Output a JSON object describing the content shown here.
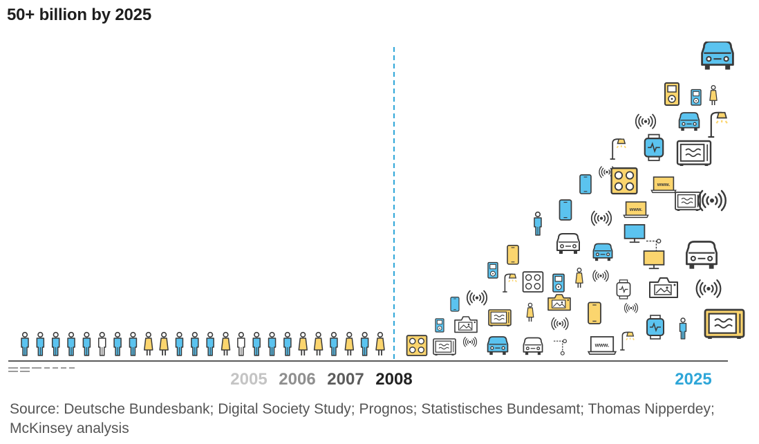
{
  "title": "50+ billion by 2025",
  "source": "Source: Deutsche Bundesbank; Digital Society Study; Prognos; Statistisches Bundesamt; Thomas Nipperdey; McKinsey analysis",
  "colors": {
    "blue": "#5bc3ef",
    "yellow": "#fbd56e",
    "outline": "#3a3a3a",
    "divider": "#2ea6d8",
    "gray": "#c8c8c8"
  },
  "chart_data": {
    "type": "pictogram",
    "title": "50+ billion by 2025",
    "categories": [
      "2005",
      "2006",
      "2007",
      "2008",
      "2025"
    ],
    "year_label_colors": [
      "#c4c4c4",
      "#8f8f8f",
      "#5c5c5c",
      "#222222",
      "#2ea6d8"
    ],
    "people_row": [
      "blue",
      "blue",
      "blue",
      "blue",
      "blue",
      "white",
      "blue",
      "blue",
      "yellow",
      "yellow",
      "blue",
      "blue",
      "blue",
      "yellow",
      "white",
      "blue",
      "blue",
      "blue",
      "yellow",
      "yellow",
      "blue",
      "yellow",
      "blue",
      "yellow"
    ],
    "device_icons": [
      {
        "icon": "car-icon",
        "fill": "blue"
      },
      {
        "icon": "ipod-icon",
        "fill": "yellow"
      },
      {
        "icon": "ipod-icon",
        "fill": "blue"
      },
      {
        "icon": "person-icon",
        "fill": "yellow"
      },
      {
        "icon": "wifi-icon",
        "fill": "none"
      },
      {
        "icon": "car-icon",
        "fill": "blue"
      },
      {
        "icon": "streetlamp-icon",
        "fill": "yellow"
      },
      {
        "icon": "streetlamp-icon",
        "fill": "yellow"
      },
      {
        "icon": "smartwatch-icon",
        "fill": "blue"
      },
      {
        "icon": "microwave-icon",
        "fill": "white"
      },
      {
        "icon": "smartphone-icon",
        "fill": "blue"
      },
      {
        "icon": "wifi-icon",
        "fill": "none"
      },
      {
        "icon": "cooktop-icon",
        "fill": "yellow"
      },
      {
        "icon": "laptop-icon",
        "fill": "yellow"
      },
      {
        "icon": "microwave-icon",
        "fill": "white"
      },
      {
        "icon": "wifi-icon",
        "fill": "none"
      },
      {
        "icon": "smartphone-icon",
        "fill": "blue"
      },
      {
        "icon": "wifi-icon",
        "fill": "none"
      },
      {
        "icon": "laptop-icon",
        "fill": "yellow"
      },
      {
        "icon": "person-icon",
        "fill": "blue"
      },
      {
        "icon": "car-icon",
        "fill": "white"
      },
      {
        "icon": "smartphone-icon",
        "fill": "yellow"
      },
      {
        "icon": "car-icon",
        "fill": "blue"
      },
      {
        "icon": "monitor-icon",
        "fill": "blue"
      },
      {
        "icon": "connected-icon",
        "fill": "none"
      },
      {
        "icon": "monitor-icon",
        "fill": "yellow"
      },
      {
        "icon": "car-icon",
        "fill": "white"
      },
      {
        "icon": "ipod-icon",
        "fill": "blue"
      },
      {
        "icon": "streetlamp-icon",
        "fill": "yellow"
      },
      {
        "icon": "cooktop-icon",
        "fill": "white"
      },
      {
        "icon": "ipod-icon",
        "fill": "blue"
      },
      {
        "icon": "person-icon",
        "fill": "yellow"
      },
      {
        "icon": "wifi-icon",
        "fill": "none"
      },
      {
        "icon": "smartwatch-icon",
        "fill": "white"
      },
      {
        "icon": "camera-icon",
        "fill": "white"
      },
      {
        "icon": "wifi-icon",
        "fill": "none"
      },
      {
        "icon": "wifi-icon",
        "fill": "none"
      },
      {
        "icon": "smartphone-icon",
        "fill": "blue"
      },
      {
        "icon": "camera-icon",
        "fill": "yellow"
      },
      {
        "icon": "smartphone-icon",
        "fill": "yellow"
      },
      {
        "icon": "wifi-icon",
        "fill": "none"
      },
      {
        "icon": "microwave-icon",
        "fill": "yellow"
      },
      {
        "icon": "person-icon",
        "fill": "yellow"
      },
      {
        "icon": "wifi-icon",
        "fill": "none"
      },
      {
        "icon": "smartwatch-icon",
        "fill": "blue"
      },
      {
        "icon": "person-icon",
        "fill": "blue"
      },
      {
        "icon": "microwave-icon",
        "fill": "yellow"
      },
      {
        "icon": "ipod-icon",
        "fill": "blue"
      },
      {
        "icon": "camera-icon",
        "fill": "white"
      },
      {
        "icon": "cooktop-icon",
        "fill": "yellow"
      },
      {
        "icon": "microwave-icon",
        "fill": "white"
      },
      {
        "icon": "wifi-icon",
        "fill": "none"
      },
      {
        "icon": "car-icon",
        "fill": "blue"
      },
      {
        "icon": "car-icon",
        "fill": "white"
      },
      {
        "icon": "connected-icon",
        "fill": "none"
      },
      {
        "icon": "laptop-icon",
        "fill": "white"
      },
      {
        "icon": "streetlamp-icon",
        "fill": "yellow"
      }
    ]
  }
}
